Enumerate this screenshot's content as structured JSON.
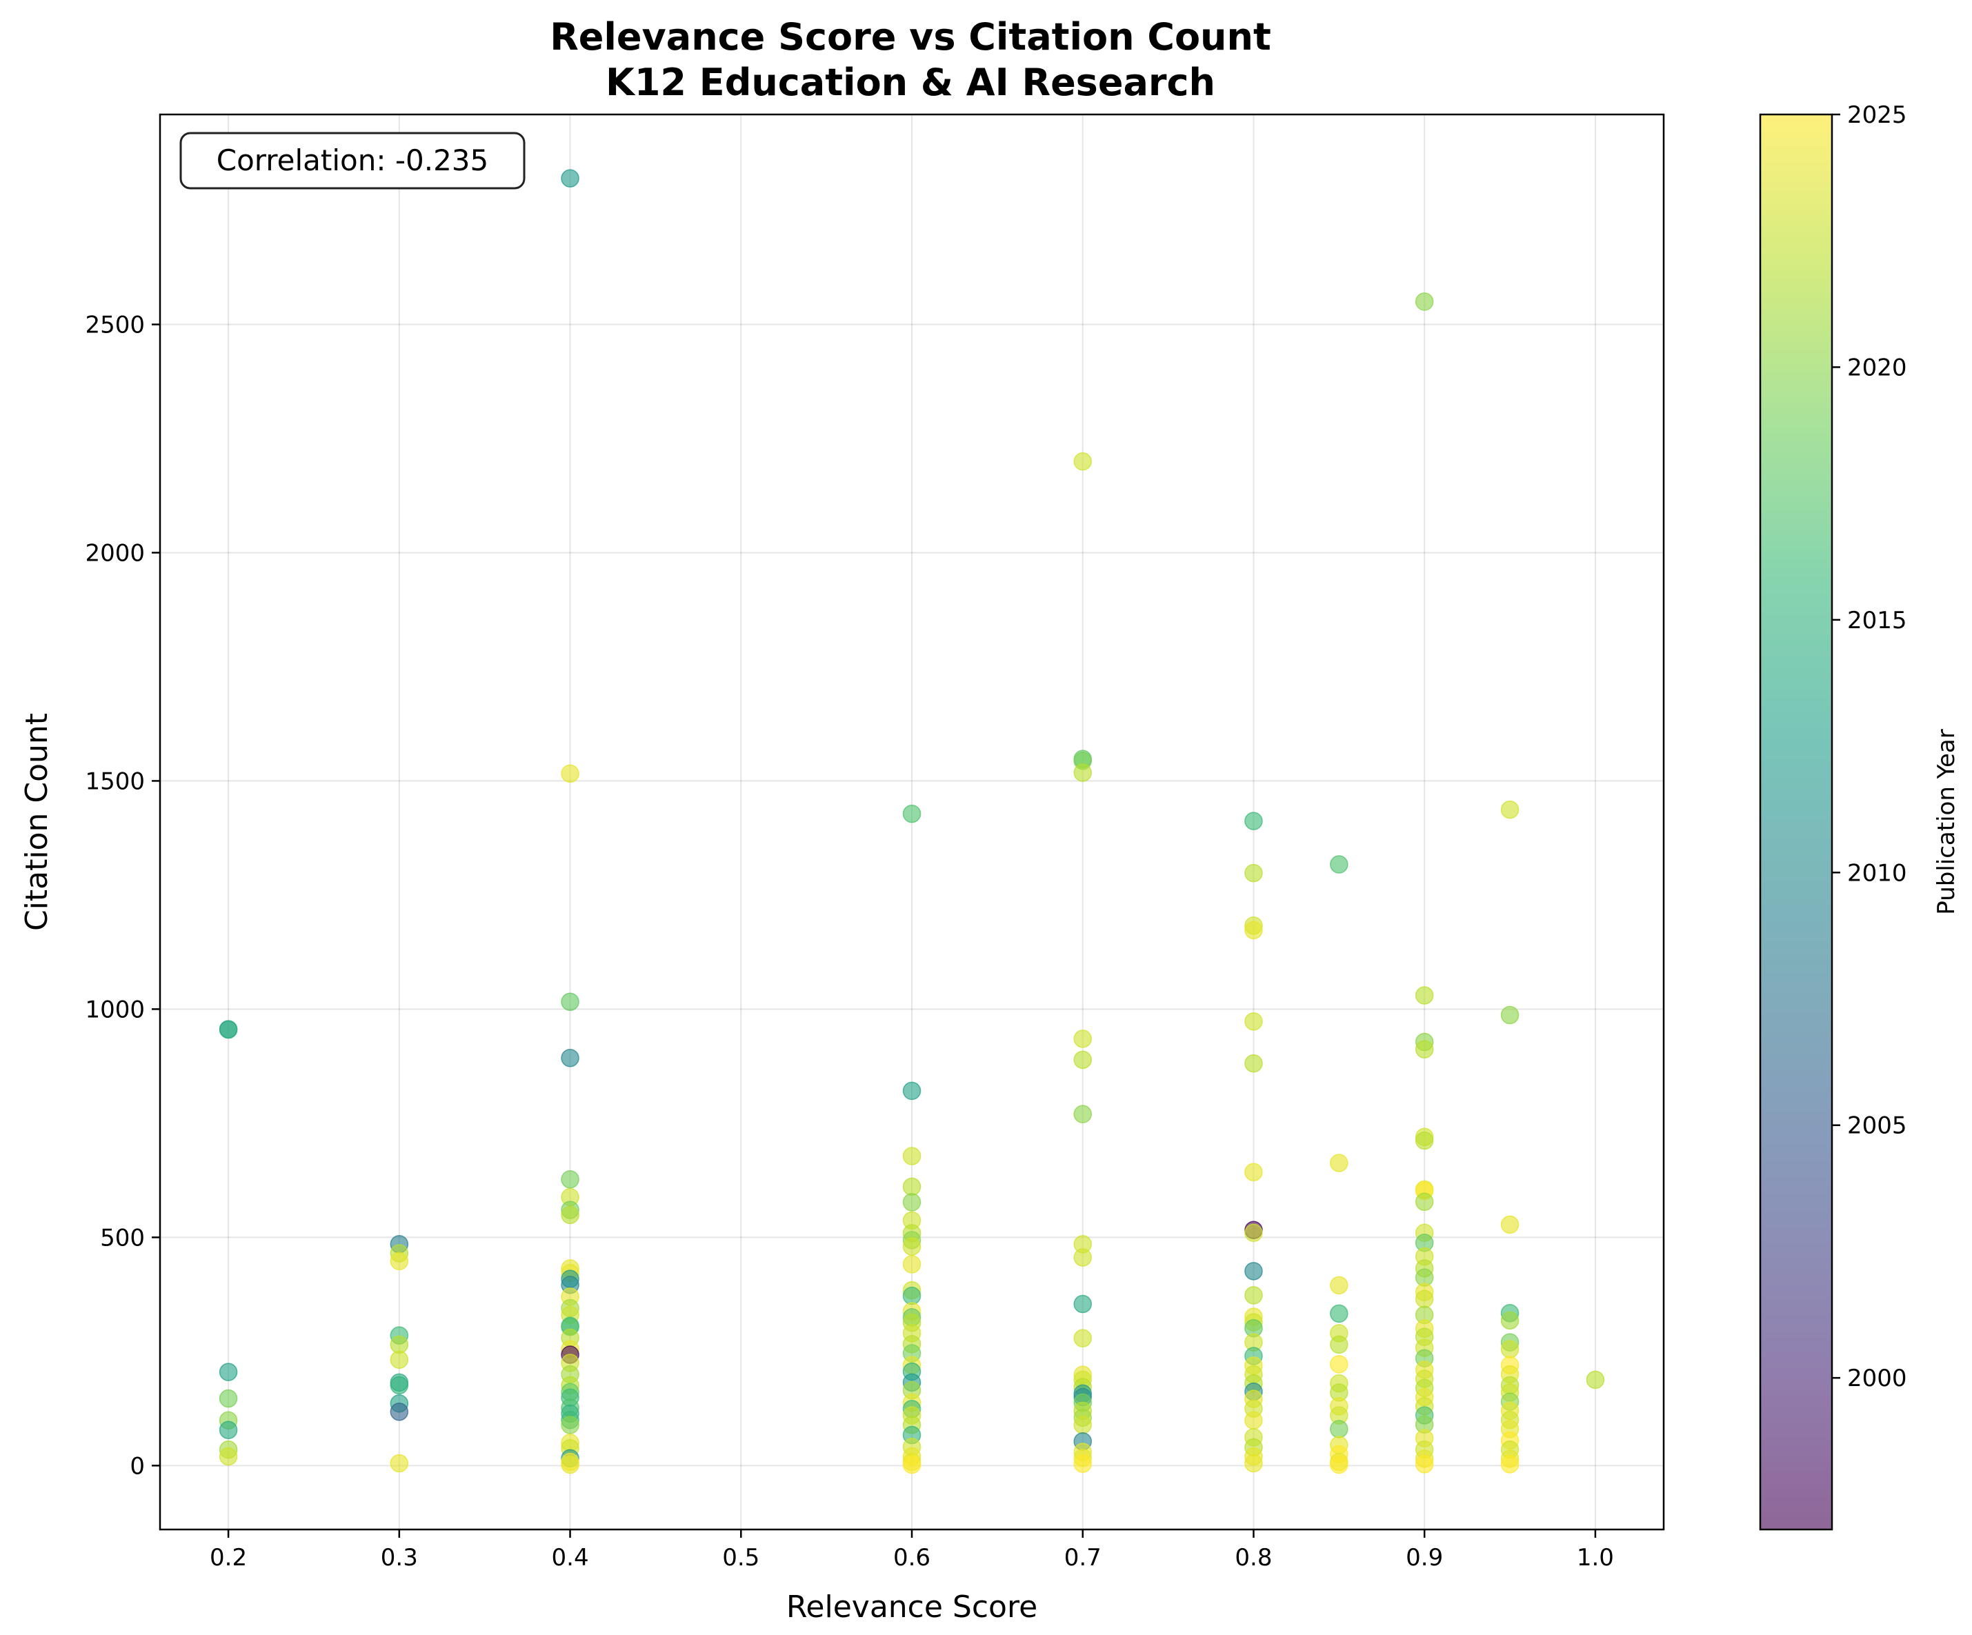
{
  "chart_data": {
    "type": "scatter",
    "title": "Relevance Score vs Citation Count",
    "subtitle": "K12 Education & AI Research",
    "xlabel": "Relevance Score",
    "ylabel": "Citation Count",
    "xlim": [
      0.16,
      1.04
    ],
    "ylim": [
      -140,
      2960
    ],
    "x_ticks": [
      "0.2",
      "0.3",
      "0.4",
      "0.5",
      "0.6",
      "0.7",
      "0.8",
      "0.9",
      "1.0"
    ],
    "y_ticks": [
      "0",
      "500",
      "1000",
      "1500",
      "2000",
      "2500"
    ],
    "grid": true,
    "annotation": "Correlation: -0.235",
    "colorbar": {
      "label": "Publication Year",
      "range": [
        1997,
        2025
      ],
      "ticks": [
        "2000",
        "2005",
        "2010",
        "2015",
        "2020",
        "2025"
      ],
      "colormap": "viridis",
      "alpha": 0.6
    },
    "points": [
      {
        "x": 0.2,
        "y": 956,
        "year": 2014
      },
      {
        "x": 0.2,
        "y": 955,
        "year": 2014
      },
      {
        "x": 0.2,
        "y": 205,
        "year": 2013
      },
      {
        "x": 0.2,
        "y": 147,
        "year": 2019
      },
      {
        "x": 0.2,
        "y": 99,
        "year": 2020
      },
      {
        "x": 0.2,
        "y": 78,
        "year": 2014
      },
      {
        "x": 0.2,
        "y": 35,
        "year": 2021
      },
      {
        "x": 0.2,
        "y": 20,
        "year": 2023
      },
      {
        "x": 0.3,
        "y": 485,
        "year": 2009
      },
      {
        "x": 0.3,
        "y": 465,
        "year": 2022
      },
      {
        "x": 0.3,
        "y": 448,
        "year": 2024
      },
      {
        "x": 0.3,
        "y": 285,
        "year": 2016
      },
      {
        "x": 0.3,
        "y": 265,
        "year": 2022
      },
      {
        "x": 0.3,
        "y": 232,
        "year": 2023
      },
      {
        "x": 0.3,
        "y": 182,
        "year": 2014
      },
      {
        "x": 0.3,
        "y": 176,
        "year": 2015
      },
      {
        "x": 0.3,
        "y": 136,
        "year": 2013
      },
      {
        "x": 0.3,
        "y": 118,
        "year": 2006
      },
      {
        "x": 0.3,
        "y": 5,
        "year": 2024
      },
      {
        "x": 0.4,
        "y": 2820,
        "year": 2012
      },
      {
        "x": 0.4,
        "y": 1516,
        "year": 2024
      },
      {
        "x": 0.4,
        "y": 1016,
        "year": 2018
      },
      {
        "x": 0.4,
        "y": 893,
        "year": 2010
      },
      {
        "x": 0.4,
        "y": 627,
        "year": 2019
      },
      {
        "x": 0.4,
        "y": 588,
        "year": 2023
      },
      {
        "x": 0.4,
        "y": 560,
        "year": 2019
      },
      {
        "x": 0.4,
        "y": 549,
        "year": 2022
      },
      {
        "x": 0.4,
        "y": 432,
        "year": 2024
      },
      {
        "x": 0.4,
        "y": 422,
        "year": 2024
      },
      {
        "x": 0.4,
        "y": 409,
        "year": 2012
      },
      {
        "x": 0.4,
        "y": 396,
        "year": 2010
      },
      {
        "x": 0.4,
        "y": 370,
        "year": 2024
      },
      {
        "x": 0.4,
        "y": 345,
        "year": 2021
      },
      {
        "x": 0.4,
        "y": 330,
        "year": 2023
      },
      {
        "x": 0.4,
        "y": 306,
        "year": 2016
      },
      {
        "x": 0.4,
        "y": 304,
        "year": 2017
      },
      {
        "x": 0.4,
        "y": 280,
        "year": 2022
      },
      {
        "x": 0.4,
        "y": 255,
        "year": 2024
      },
      {
        "x": 0.4,
        "y": 243,
        "year": 1997
      },
      {
        "x": 0.4,
        "y": 225,
        "year": 2023
      },
      {
        "x": 0.4,
        "y": 200,
        "year": 2021
      },
      {
        "x": 0.4,
        "y": 176,
        "year": 2022
      },
      {
        "x": 0.4,
        "y": 161,
        "year": 2018
      },
      {
        "x": 0.4,
        "y": 149,
        "year": 2016
      },
      {
        "x": 0.4,
        "y": 127,
        "year": 2017
      },
      {
        "x": 0.4,
        "y": 114,
        "year": 2015
      },
      {
        "x": 0.4,
        "y": 100,
        "year": 2016
      },
      {
        "x": 0.4,
        "y": 89,
        "year": 2020
      },
      {
        "x": 0.4,
        "y": 50,
        "year": 2024
      },
      {
        "x": 0.4,
        "y": 38,
        "year": 2023
      },
      {
        "x": 0.4,
        "y": 16,
        "year": 2012
      },
      {
        "x": 0.4,
        "y": 8,
        "year": 2025
      },
      {
        "x": 0.4,
        "y": 2,
        "year": 2024
      },
      {
        "x": 0.6,
        "y": 1428,
        "year": 2017
      },
      {
        "x": 0.6,
        "y": 821,
        "year": 2013
      },
      {
        "x": 0.6,
        "y": 678,
        "year": 2023
      },
      {
        "x": 0.6,
        "y": 611,
        "year": 2022
      },
      {
        "x": 0.6,
        "y": 577,
        "year": 2020
      },
      {
        "x": 0.6,
        "y": 537,
        "year": 2023
      },
      {
        "x": 0.6,
        "y": 509,
        "year": 2022
      },
      {
        "x": 0.6,
        "y": 494,
        "year": 2020
      },
      {
        "x": 0.6,
        "y": 480,
        "year": 2023
      },
      {
        "x": 0.6,
        "y": 441,
        "year": 2024
      },
      {
        "x": 0.6,
        "y": 384,
        "year": 2023
      },
      {
        "x": 0.6,
        "y": 372,
        "year": 2016
      },
      {
        "x": 0.6,
        "y": 338,
        "year": 2024
      },
      {
        "x": 0.6,
        "y": 325,
        "year": 2018
      },
      {
        "x": 0.6,
        "y": 313,
        "year": 2022
      },
      {
        "x": 0.6,
        "y": 290,
        "year": 2023
      },
      {
        "x": 0.6,
        "y": 266,
        "year": 2022
      },
      {
        "x": 0.6,
        "y": 246,
        "year": 2019
      },
      {
        "x": 0.6,
        "y": 220,
        "year": 2024
      },
      {
        "x": 0.6,
        "y": 206,
        "year": 2015
      },
      {
        "x": 0.6,
        "y": 182,
        "year": 2012
      },
      {
        "x": 0.6,
        "y": 165,
        "year": 2021
      },
      {
        "x": 0.6,
        "y": 138,
        "year": 2024
      },
      {
        "x": 0.6,
        "y": 124,
        "year": 2016
      },
      {
        "x": 0.6,
        "y": 110,
        "year": 2023
      },
      {
        "x": 0.6,
        "y": 89,
        "year": 2022
      },
      {
        "x": 0.6,
        "y": 67,
        "year": 2015
      },
      {
        "x": 0.6,
        "y": 41,
        "year": 2023
      },
      {
        "x": 0.6,
        "y": 20,
        "year": 2024
      },
      {
        "x": 0.6,
        "y": 8,
        "year": 2024
      },
      {
        "x": 0.6,
        "y": 2,
        "year": 2025
      },
      {
        "x": 0.7,
        "y": 2200,
        "year": 2023
      },
      {
        "x": 0.7,
        "y": 1548,
        "year": 2018
      },
      {
        "x": 0.7,
        "y": 1544,
        "year": 2019
      },
      {
        "x": 0.7,
        "y": 1518,
        "year": 2022
      },
      {
        "x": 0.7,
        "y": 935,
        "year": 2023
      },
      {
        "x": 0.7,
        "y": 889,
        "year": 2022
      },
      {
        "x": 0.7,
        "y": 770,
        "year": 2020
      },
      {
        "x": 0.7,
        "y": 485,
        "year": 2023
      },
      {
        "x": 0.7,
        "y": 456,
        "year": 2023
      },
      {
        "x": 0.7,
        "y": 354,
        "year": 2014
      },
      {
        "x": 0.7,
        "y": 279,
        "year": 2023
      },
      {
        "x": 0.7,
        "y": 199,
        "year": 2024
      },
      {
        "x": 0.7,
        "y": 188,
        "year": 2023
      },
      {
        "x": 0.7,
        "y": 172,
        "year": 2022
      },
      {
        "x": 0.7,
        "y": 158,
        "year": 2012
      },
      {
        "x": 0.7,
        "y": 150,
        "year": 2011
      },
      {
        "x": 0.7,
        "y": 138,
        "year": 2019
      },
      {
        "x": 0.7,
        "y": 120,
        "year": 2022
      },
      {
        "x": 0.7,
        "y": 105,
        "year": 2021
      },
      {
        "x": 0.7,
        "y": 89,
        "year": 2023
      },
      {
        "x": 0.7,
        "y": 53,
        "year": 2010
      },
      {
        "x": 0.7,
        "y": 30,
        "year": 2024
      },
      {
        "x": 0.7,
        "y": 17,
        "year": 2024
      },
      {
        "x": 0.7,
        "y": 4,
        "year": 2025
      },
      {
        "x": 0.8,
        "y": 1412,
        "year": 2016
      },
      {
        "x": 0.8,
        "y": 1298,
        "year": 2022
      },
      {
        "x": 0.8,
        "y": 1183,
        "year": 2023
      },
      {
        "x": 0.8,
        "y": 1173,
        "year": 2024
      },
      {
        "x": 0.8,
        "y": 973,
        "year": 2023
      },
      {
        "x": 0.8,
        "y": 881,
        "year": 2022
      },
      {
        "x": 0.8,
        "y": 643,
        "year": 2024
      },
      {
        "x": 0.8,
        "y": 516,
        "year": 1997
      },
      {
        "x": 0.8,
        "y": 510,
        "year": 2023
      },
      {
        "x": 0.8,
        "y": 426,
        "year": 2010
      },
      {
        "x": 0.8,
        "y": 373,
        "year": 2022
      },
      {
        "x": 0.8,
        "y": 326,
        "year": 2024
      },
      {
        "x": 0.8,
        "y": 314,
        "year": 2023
      },
      {
        "x": 0.8,
        "y": 301,
        "year": 2018
      },
      {
        "x": 0.8,
        "y": 270,
        "year": 2023
      },
      {
        "x": 0.8,
        "y": 240,
        "year": 2016
      },
      {
        "x": 0.8,
        "y": 219,
        "year": 2024
      },
      {
        "x": 0.8,
        "y": 200,
        "year": 2023
      },
      {
        "x": 0.8,
        "y": 180,
        "year": 2022
      },
      {
        "x": 0.8,
        "y": 162,
        "year": 2011
      },
      {
        "x": 0.8,
        "y": 146,
        "year": 2024
      },
      {
        "x": 0.8,
        "y": 125,
        "year": 2023
      },
      {
        "x": 0.8,
        "y": 99,
        "year": 2024
      },
      {
        "x": 0.8,
        "y": 62,
        "year": 2023
      },
      {
        "x": 0.8,
        "y": 40,
        "year": 2022
      },
      {
        "x": 0.8,
        "y": 20,
        "year": 2024
      },
      {
        "x": 0.8,
        "y": 5,
        "year": 2024
      },
      {
        "x": 0.85,
        "y": 1317,
        "year": 2017
      },
      {
        "x": 0.85,
        "y": 663,
        "year": 2024
      },
      {
        "x": 0.85,
        "y": 395,
        "year": 2024
      },
      {
        "x": 0.85,
        "y": 333,
        "year": 2016
      },
      {
        "x": 0.85,
        "y": 290,
        "year": 2023
      },
      {
        "x": 0.85,
        "y": 265,
        "year": 2022
      },
      {
        "x": 0.85,
        "y": 222,
        "year": 2025
      },
      {
        "x": 0.85,
        "y": 180,
        "year": 2023
      },
      {
        "x": 0.85,
        "y": 160,
        "year": 2022
      },
      {
        "x": 0.85,
        "y": 130,
        "year": 2024
      },
      {
        "x": 0.85,
        "y": 110,
        "year": 2023
      },
      {
        "x": 0.85,
        "y": 80,
        "year": 2019
      },
      {
        "x": 0.85,
        "y": 45,
        "year": 2024
      },
      {
        "x": 0.85,
        "y": 25,
        "year": 2025
      },
      {
        "x": 0.85,
        "y": 8,
        "year": 2024
      },
      {
        "x": 0.85,
        "y": 2,
        "year": 2025
      },
      {
        "x": 0.9,
        "y": 2550,
        "year": 2020
      },
      {
        "x": 0.9,
        "y": 1030,
        "year": 2022
      },
      {
        "x": 0.9,
        "y": 928,
        "year": 2020
      },
      {
        "x": 0.9,
        "y": 912,
        "year": 2022
      },
      {
        "x": 0.9,
        "y": 720,
        "year": 2023
      },
      {
        "x": 0.9,
        "y": 712,
        "year": 2022
      },
      {
        "x": 0.9,
        "y": 605,
        "year": 2024
      },
      {
        "x": 0.9,
        "y": 602,
        "year": 2025
      },
      {
        "x": 0.9,
        "y": 578,
        "year": 2021
      },
      {
        "x": 0.9,
        "y": 510,
        "year": 2023
      },
      {
        "x": 0.9,
        "y": 488,
        "year": 2018
      },
      {
        "x": 0.9,
        "y": 458,
        "year": 2023
      },
      {
        "x": 0.9,
        "y": 432,
        "year": 2022
      },
      {
        "x": 0.9,
        "y": 412,
        "year": 2020
      },
      {
        "x": 0.9,
        "y": 380,
        "year": 2024
      },
      {
        "x": 0.9,
        "y": 365,
        "year": 2023
      },
      {
        "x": 0.9,
        "y": 330,
        "year": 2021
      },
      {
        "x": 0.9,
        "y": 300,
        "year": 2024
      },
      {
        "x": 0.9,
        "y": 282,
        "year": 2022
      },
      {
        "x": 0.9,
        "y": 258,
        "year": 2023
      },
      {
        "x": 0.9,
        "y": 235,
        "year": 2019
      },
      {
        "x": 0.9,
        "y": 210,
        "year": 2024
      },
      {
        "x": 0.9,
        "y": 190,
        "year": 2023
      },
      {
        "x": 0.9,
        "y": 170,
        "year": 2022
      },
      {
        "x": 0.9,
        "y": 150,
        "year": 2024
      },
      {
        "x": 0.9,
        "y": 130,
        "year": 2023
      },
      {
        "x": 0.9,
        "y": 110,
        "year": 2017
      },
      {
        "x": 0.9,
        "y": 90,
        "year": 2020
      },
      {
        "x": 0.9,
        "y": 60,
        "year": 2024
      },
      {
        "x": 0.9,
        "y": 35,
        "year": 2023
      },
      {
        "x": 0.9,
        "y": 15,
        "year": 2024
      },
      {
        "x": 0.9,
        "y": 3,
        "year": 2025
      },
      {
        "x": 0.95,
        "y": 1437,
        "year": 2023
      },
      {
        "x": 0.95,
        "y": 987,
        "year": 2020
      },
      {
        "x": 0.95,
        "y": 528,
        "year": 2024
      },
      {
        "x": 0.95,
        "y": 334,
        "year": 2016
      },
      {
        "x": 0.95,
        "y": 318,
        "year": 2021
      },
      {
        "x": 0.95,
        "y": 270,
        "year": 2019
      },
      {
        "x": 0.95,
        "y": 255,
        "year": 2023
      },
      {
        "x": 0.95,
        "y": 220,
        "year": 2025
      },
      {
        "x": 0.95,
        "y": 200,
        "year": 2024
      },
      {
        "x": 0.95,
        "y": 176,
        "year": 2022
      },
      {
        "x": 0.95,
        "y": 160,
        "year": 2023
      },
      {
        "x": 0.95,
        "y": 140,
        "year": 2020
      },
      {
        "x": 0.95,
        "y": 120,
        "year": 2024
      },
      {
        "x": 0.95,
        "y": 100,
        "year": 2023
      },
      {
        "x": 0.95,
        "y": 80,
        "year": 2024
      },
      {
        "x": 0.95,
        "y": 55,
        "year": 2025
      },
      {
        "x": 0.95,
        "y": 35,
        "year": 2023
      },
      {
        "x": 0.95,
        "y": 15,
        "year": 2024
      },
      {
        "x": 0.95,
        "y": 3,
        "year": 2025
      },
      {
        "x": 1.0,
        "y": 188,
        "year": 2022
      }
    ]
  }
}
